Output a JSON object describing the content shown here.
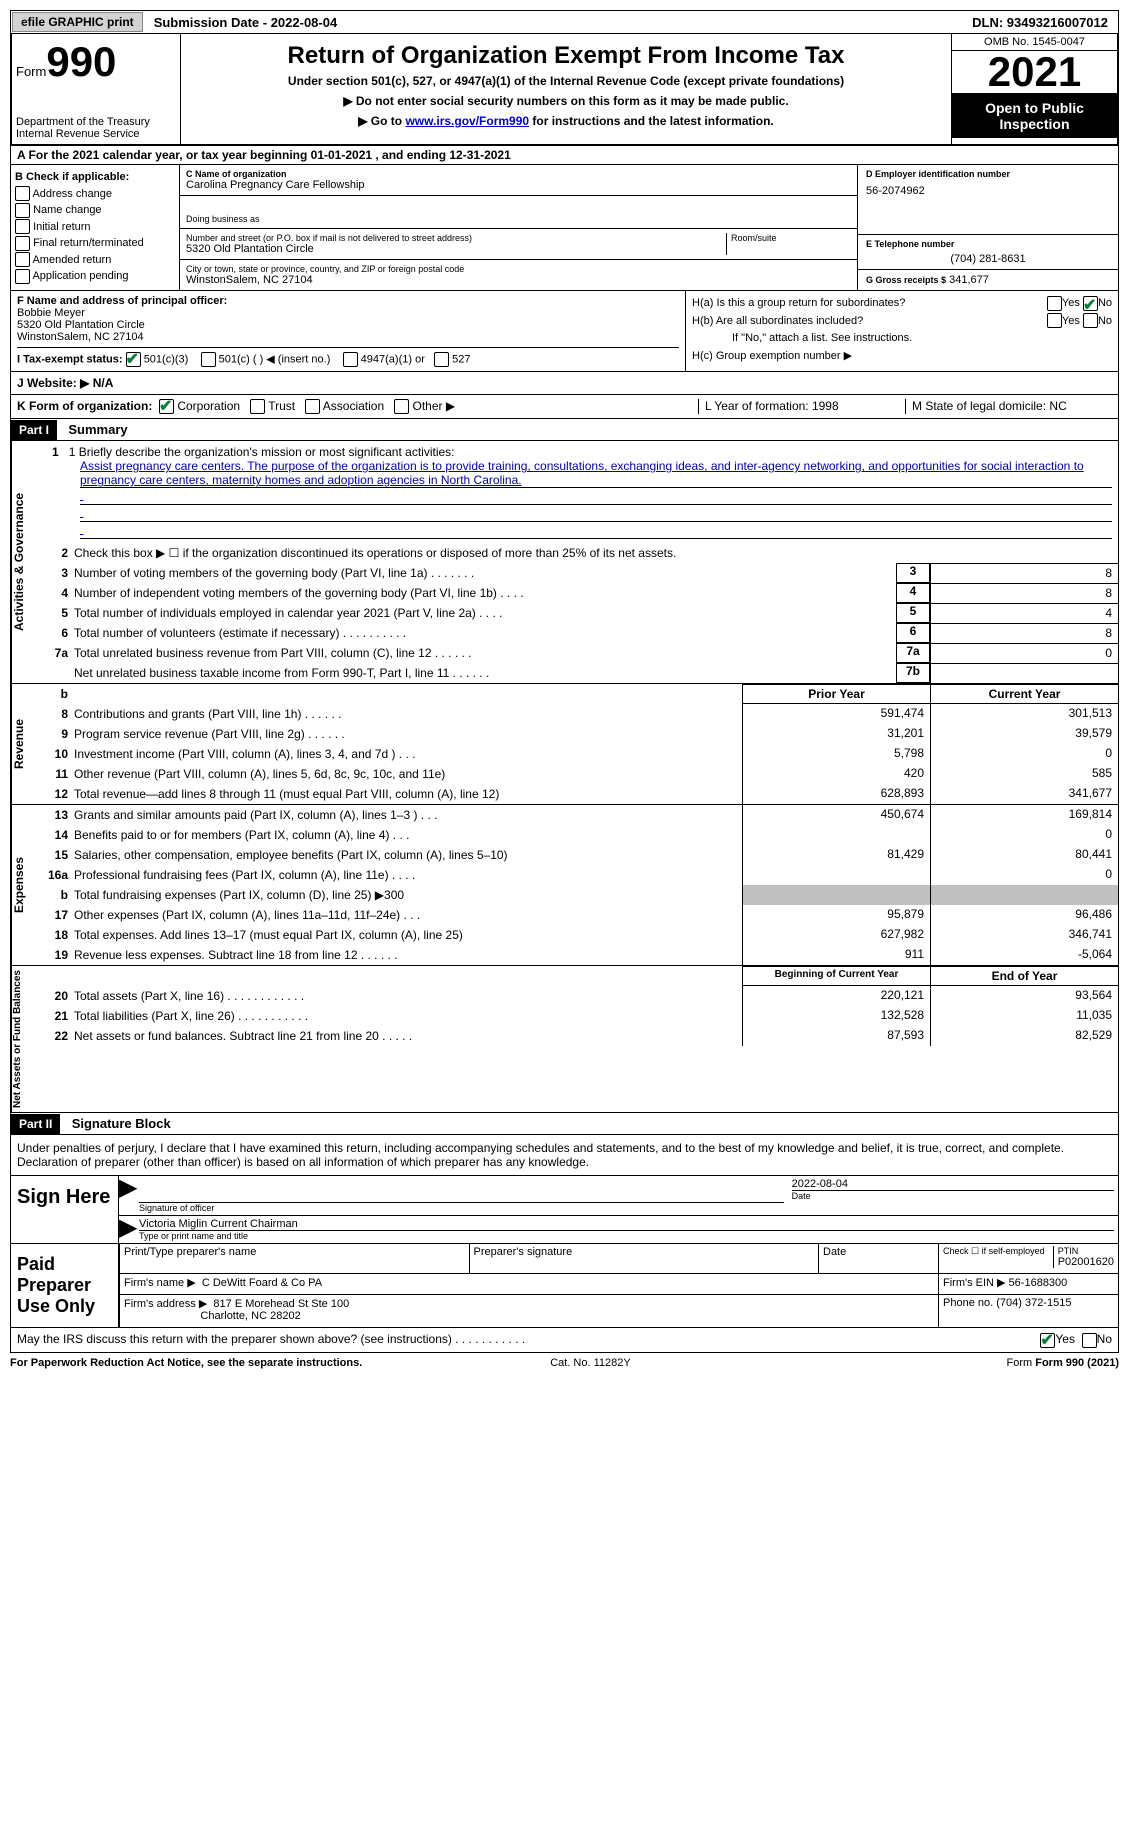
{
  "topbar": {
    "efile_label": "efile GRAPHIC print",
    "submission_label": "Submission Date - 2022-08-04",
    "dln_label": "DLN: 93493216007012"
  },
  "header": {
    "form_label": "Form",
    "form_number": "990",
    "dept": "Department of the Treasury Internal Revenue Service",
    "title": "Return of Organization Exempt From Income Tax",
    "subtitle": "Under section 501(c), 527, or 4947(a)(1) of the Internal Revenue Code (except private foundations)",
    "note1": "▶ Do not enter social security numbers on this form as it may be made public.",
    "note2_prefix": "▶ Go to ",
    "note2_link": "www.irs.gov/Form990",
    "note2_suffix": " for instructions and the latest information.",
    "omb": "OMB No. 1545-0047",
    "year": "2021",
    "open_public": "Open to Public Inspection"
  },
  "rowA": "A For the 2021 calendar year, or tax year beginning 01-01-2021   , and ending 12-31-2021",
  "colB": {
    "header": "B Check if applicable:",
    "items": [
      "Address change",
      "Name change",
      "Initial return",
      "Final return/terminated",
      "Amended return",
      "Application pending"
    ]
  },
  "colC": {
    "name_label": "C Name of organization",
    "name": "Carolina Pregnancy Care Fellowship",
    "dba_label": "Doing business as",
    "addr_label": "Number and street (or P.O. box if mail is not delivered to street address)",
    "room_label": "Room/suite",
    "addr": "5320 Old Plantation Circle",
    "city_label": "City or town, state or province, country, and ZIP or foreign postal code",
    "city": "WinstonSalem, NC  27104"
  },
  "colD": {
    "ein_label": "D Employer identification number",
    "ein": "56-2074962",
    "tel_label": "E Telephone number",
    "tel": "(704) 281-8631",
    "gross_label": "G Gross receipts $",
    "gross": "341,677"
  },
  "colF": {
    "label": "F Name and address of principal officer:",
    "name": "Bobbie Meyer",
    "addr1": "5320 Old Plantation Circle",
    "addr2": "WinstonSalem, NC  27104"
  },
  "colH": {
    "ha": "H(a)  Is this a group return for subordinates?",
    "hb": "H(b)  Are all subordinates included?",
    "hb_note": "If \"No,\" attach a list. See instructions.",
    "hc": "H(c)  Group exemption number ▶"
  },
  "rowI": "I  Tax-exempt status:",
  "rowI_opts": [
    "501(c)(3)",
    "501(c) (  ) ◀ (insert no.)",
    "4947(a)(1) or",
    "527"
  ],
  "rowJ": "J  Website: ▶  N/A",
  "rowK": "K Form of organization:",
  "rowK_opts": [
    "Corporation",
    "Trust",
    "Association",
    "Other ▶"
  ],
  "rowL": "L Year of formation: 1998",
  "rowM": "M State of legal domicile: NC",
  "part1": {
    "header": "Part I",
    "title": "Summary",
    "line1_label": "1   Briefly describe the organization's mission or most significant activities:",
    "mission": "Assist pregnancy care centers. The purpose of the organization is to provide training, consultations, exchanging ideas, and inter-agency networking, and opportunities for social interaction to pregnancy care centers, maternity homes and adoption agencies in North Carolina.",
    "line2": "Check this box ▶ ☐  if the organization discontinued its operations or disposed of more than 25% of its net assets."
  },
  "summary_rows": [
    {
      "n": "3",
      "d": "Number of voting members of the governing body (Part VI, line 1a)   .    .    .    .    .    .    .",
      "box": "3",
      "v2": "8"
    },
    {
      "n": "4",
      "d": "Number of independent voting members of the governing body (Part VI, line 1b)  .    .    .    .",
      "box": "4",
      "v2": "8"
    },
    {
      "n": "5",
      "d": "Total number of individuals employed in calendar year 2021 (Part V, line 2a)   .    .    .    .",
      "box": "5",
      "v2": "4"
    },
    {
      "n": "6",
      "d": "Total number of volunteers (estimate if necessary)    .    .    .    .    .    .    .    .    .    .",
      "box": "6",
      "v2": "8"
    },
    {
      "n": "7a",
      "d": "Total unrelated business revenue from Part VIII, column (C), line 12  .    .    .    .    .    .",
      "box": "7a",
      "v2": "0"
    },
    {
      "n": "",
      "d": "Net unrelated business taxable income from Form 990-T, Part I, line 11  .    .    .    .    .    .",
      "box": "7b",
      "v2": ""
    }
  ],
  "col_headers": {
    "prior": "Prior Year",
    "current": "Current Year"
  },
  "revenue_rows": [
    {
      "n": "8",
      "d": "Contributions and grants (Part VIII, line 1h)   .    .    .    .    .    .",
      "v1": "591,474",
      "v2": "301,513"
    },
    {
      "n": "9",
      "d": "Program service revenue (Part VIII, line 2g)   .    .    .    .    .    .",
      "v1": "31,201",
      "v2": "39,579"
    },
    {
      "n": "10",
      "d": "Investment income (Part VIII, column (A), lines 3, 4, and 7d )   .    .    .",
      "v1": "5,798",
      "v2": "0"
    },
    {
      "n": "11",
      "d": "Other revenue (Part VIII, column (A), lines 5, 6d, 8c, 9c, 10c, and 11e)",
      "v1": "420",
      "v2": "585"
    },
    {
      "n": "12",
      "d": "Total revenue—add lines 8 through 11 (must equal Part VIII, column (A), line 12)",
      "v1": "628,893",
      "v2": "341,677"
    }
  ],
  "expense_rows": [
    {
      "n": "13",
      "d": "Grants and similar amounts paid (Part IX, column (A), lines 1–3 )  .    .   .",
      "v1": "450,674",
      "v2": "169,814"
    },
    {
      "n": "14",
      "d": "Benefits paid to or for members (Part IX, column (A), line 4)  .    .    .",
      "v1": "",
      "v2": "0"
    },
    {
      "n": "15",
      "d": "Salaries, other compensation, employee benefits (Part IX, column (A), lines 5–10)",
      "v1": "81,429",
      "v2": "80,441"
    },
    {
      "n": "16a",
      "d": "Professional fundraising fees (Part IX, column (A), line 11e)   .    .    .    .",
      "v1": "",
      "v2": "0"
    },
    {
      "n": "b",
      "d": "Total fundraising expenses (Part IX, column (D), line 25) ▶300",
      "v1": "shaded",
      "v2": "shaded"
    },
    {
      "n": "17",
      "d": "Other expenses (Part IX, column (A), lines 11a–11d, 11f–24e)   .    .    .",
      "v1": "95,879",
      "v2": "96,486"
    },
    {
      "n": "18",
      "d": "Total expenses. Add lines 13–17 (must equal Part IX, column (A), line 25)",
      "v1": "627,982",
      "v2": "346,741"
    },
    {
      "n": "19",
      "d": "Revenue less expenses. Subtract line 18 from line 12  .    .    .    .    .    .",
      "v1": "911",
      "v2": "-5,064"
    }
  ],
  "net_headers": {
    "begin": "Beginning of Current Year",
    "end": "End of Year"
  },
  "net_rows": [
    {
      "n": "20",
      "d": "Total assets (Part X, line 16)  .    .    .    .    .    .    .    .    .    .    .    .",
      "v1": "220,121",
      "v2": "93,564"
    },
    {
      "n": "21",
      "d": "Total liabilities (Part X, line 26)  .    .    .    .    .    .    .    .    .    .    .",
      "v1": "132,528",
      "v2": "11,035"
    },
    {
      "n": "22",
      "d": "Net assets or fund balances. Subtract line 21 from line 20  .    .    .    .    .",
      "v1": "87,593",
      "v2": "82,529"
    }
  ],
  "part2": {
    "header": "Part II",
    "title": "Signature Block",
    "declaration": "Under penalties of perjury, I declare that I have examined this return, including accompanying schedules and statements, and to the best of my knowledge and belief, it is true, correct, and complete. Declaration of preparer (other than officer) is based on all information of which preparer has any knowledge."
  },
  "sign": {
    "label": "Sign Here",
    "sig_label": "Signature of officer",
    "date": "2022-08-04",
    "name": "Victoria Miglin  Current Chairman",
    "name_label": "Type or print name and title"
  },
  "prep": {
    "label": "Paid Preparer Use Only",
    "h1": "Print/Type preparer's name",
    "h2": "Preparer's signature",
    "h3": "Date",
    "h4": "Check ☐ if self-employed",
    "ptin_label": "PTIN",
    "ptin": "P02001620",
    "firm_label": "Firm's name    ▶",
    "firm": "C DeWitt Foard & Co PA",
    "ein_label": "Firm's EIN ▶",
    "ein": "56-1688300",
    "addr_label": "Firm's address ▶",
    "addr1": "817 E Morehead St Ste 100",
    "addr2": "Charlotte, NC  28202",
    "phone_label": "Phone no.",
    "phone": "(704) 372-1515"
  },
  "footer": {
    "discuss": "May the IRS discuss this return with the preparer shown above? (see instructions)  .    .    .    .    .    .    .    .    .    .    .",
    "notice": "For Paperwork Reduction Act Notice, see the separate instructions.",
    "cat": "Cat. No. 11282Y",
    "form": "Form 990 (2021)"
  }
}
